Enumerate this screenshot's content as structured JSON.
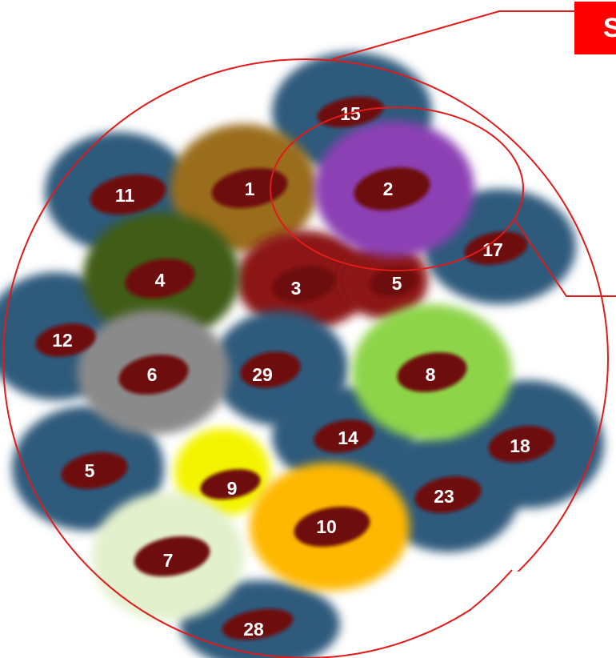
{
  "diagram": {
    "callout_label": "S",
    "colors": {
      "background": "#ffffff",
      "outline": "#e11a1a",
      "callout_fill": "#ff0000",
      "nucleus": "#6e0b10",
      "label_text": "#ffffff"
    },
    "cells": [
      {
        "id": "c15",
        "label": "15",
        "color": "#2f5a7c"
      },
      {
        "id": "c11",
        "label": "11",
        "color": "#2f5a7c"
      },
      {
        "id": "c1",
        "label": "1",
        "color": "#9a6d1f"
      },
      {
        "id": "c2",
        "label": "2",
        "color": "#8b3fb3"
      },
      {
        "id": "c17",
        "label": "17",
        "color": "#2f5a7c"
      },
      {
        "id": "c4",
        "label": "4",
        "color": "#3f5c16"
      },
      {
        "id": "c3",
        "label": "3",
        "color": "#8c1414"
      },
      {
        "id": "c5a",
        "label": "5",
        "color": "#8c1414"
      },
      {
        "id": "c12",
        "label": "12",
        "color": "#2f5a7c"
      },
      {
        "id": "c6",
        "label": "6",
        "color": "#8a8a8a"
      },
      {
        "id": "c29",
        "label": "29",
        "color": "#2f5a7c"
      },
      {
        "id": "c8",
        "label": "8",
        "color": "#8ed44a"
      },
      {
        "id": "c14",
        "label": "14",
        "color": "#2f5a7c"
      },
      {
        "id": "c18",
        "label": "18",
        "color": "#2f5a7c"
      },
      {
        "id": "c5b",
        "label": "5",
        "color": "#2f5a7c"
      },
      {
        "id": "c9",
        "label": "9",
        "color": "#f4f400"
      },
      {
        "id": "c23",
        "label": "23",
        "color": "#2f5a7c"
      },
      {
        "id": "c10",
        "label": "10",
        "color": "#ffb800"
      },
      {
        "id": "c7",
        "label": "7",
        "color": "#e3f0cc"
      },
      {
        "id": "c28",
        "label": "28",
        "color": "#2f5a7c"
      }
    ]
  }
}
